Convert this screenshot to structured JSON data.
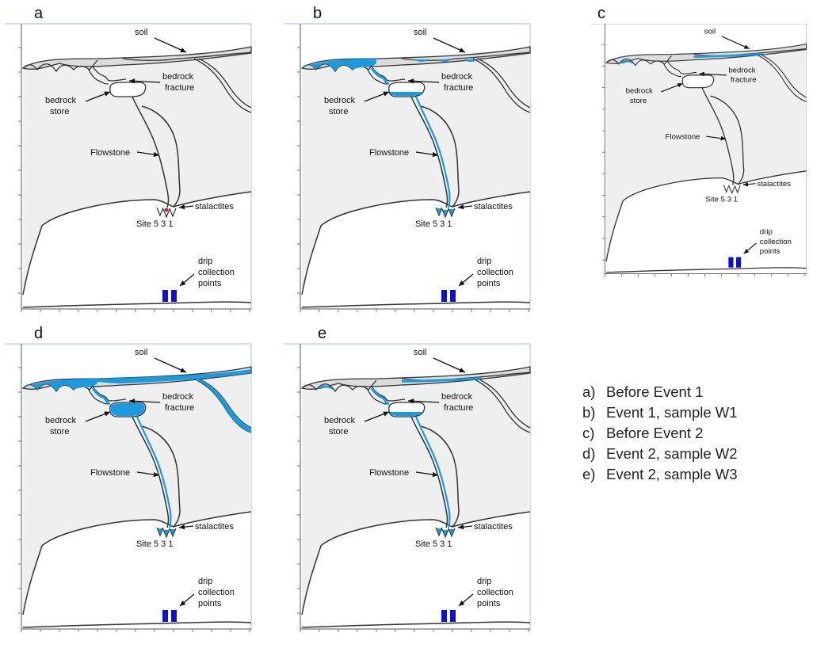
{
  "panels": [
    {
      "letter": "a",
      "water": {
        "soil": "none",
        "store": "empty",
        "fracture": false,
        "flow": false,
        "drip": "red"
      }
    },
    {
      "letter": "b",
      "water": {
        "soil": "strong",
        "store": "partial",
        "fracture": true,
        "flow": true,
        "drip": "blue"
      }
    },
    {
      "letter": "c",
      "water": {
        "soil": "weak",
        "store": "empty",
        "fracture": false,
        "flow": false,
        "drip": "none"
      }
    },
    {
      "letter": "d",
      "water": {
        "soil": "full",
        "store": "full",
        "fracture": true,
        "flow": true,
        "drip": "blue"
      }
    },
    {
      "letter": "e",
      "water": {
        "soil": "weak",
        "store": "partial",
        "fracture": true,
        "flow": true,
        "drip": "blue"
      }
    }
  ],
  "labels": {
    "soil": "soil",
    "bedrock_fracture_1": "bedrock",
    "bedrock_fracture_2": "fracture",
    "bedrock_store_1": "bedrock",
    "bedrock_store_2": "store",
    "flowstone": "Flowstone",
    "stalactites": "stalactites",
    "site": "Site 5 3 1",
    "drip_1": "drip",
    "drip_2": "collection",
    "drip_3": "points"
  },
  "legend": [
    {
      "key": "a)",
      "text": "Before Event 1"
    },
    {
      "key": "b)",
      "text": "Event 1, sample W1"
    },
    {
      "key": "c)",
      "text": "Before Event 2"
    },
    {
      "key": "d)",
      "text": "Event 2, sample W2"
    },
    {
      "key": "e)",
      "text": "Event 2, sample W3"
    }
  ],
  "colors": {
    "water": "#1a9be0",
    "collector": "#1010d0",
    "rock": "#efefef",
    "soil": "#dcdcdc",
    "outline": "#333333",
    "axis": "#a9bfd6",
    "drip_red": "#d02020"
  }
}
